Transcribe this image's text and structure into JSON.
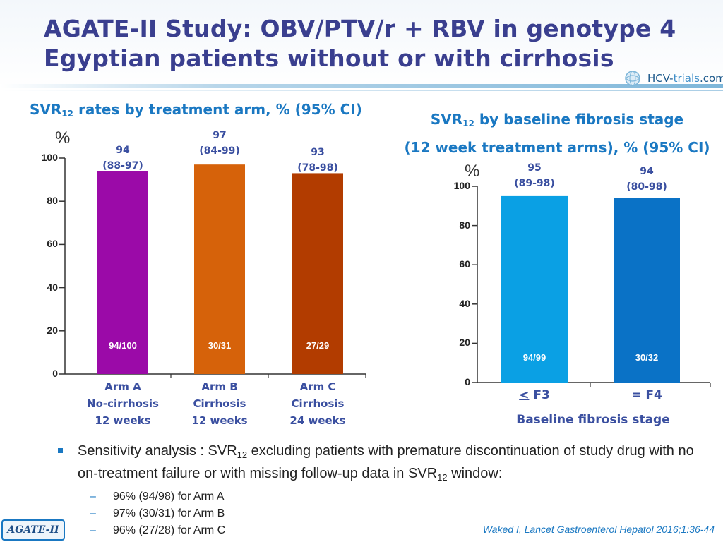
{
  "header": {
    "title_line1": "AGATE-II Study: OBV/PTV/r + RBV in genotype 4",
    "title_line2": "Egyptian patients without or with cirrhosis",
    "logo_part1": "HCV-",
    "logo_part2": "trials",
    "logo_part3": ".com"
  },
  "left_section": {
    "title_pre": "SVR",
    "title_sub": "12",
    "title_post": " rates by treatment arm, % (95% CI)"
  },
  "right_section": {
    "title_line1_pre": "SVR",
    "title_line1_sub": "12",
    "title_line1_post": " by baseline fibrosis stage",
    "title_line2": "(12 week treatment arms), % (95% CI)",
    "xlabel": "Baseline fibrosis stage"
  },
  "colors": {
    "title": "#3a3f8f",
    "accent": "#1a78c2",
    "arm_a": "#9b0aa8",
    "arm_b": "#d6620a",
    "arm_c": "#b23c00",
    "f3": "#0aa0e4",
    "f4": "#0a72c6"
  },
  "chart_data": [
    {
      "type": "bar",
      "title": "SVR12 rates by treatment arm, % (95% CI)",
      "ylabel": "%",
      "ylim": [
        0,
        100
      ],
      "yticks": [
        "0",
        "20",
        "40",
        "60",
        "80",
        "100"
      ],
      "categories": [
        [
          "Arm A",
          "No-cirrhosis",
          "12 weeks"
        ],
        [
          "Arm B",
          "Cirrhosis",
          "12 weeks"
        ],
        [
          "Arm C",
          "Cirrhosis",
          "24 weeks"
        ]
      ],
      "values": [
        94,
        97,
        93
      ],
      "value_labels": [
        "94",
        "97",
        "93"
      ],
      "ci_labels": [
        "(88-97)",
        "(84-99)",
        "(78-98)"
      ],
      "count_labels": [
        "94/100",
        "30/31",
        "27/29"
      ]
    },
    {
      "type": "bar",
      "title": "SVR12 by baseline fibrosis stage (12 week treatment arms), % (95% CI)",
      "ylabel": "%",
      "xlabel": "Baseline fibrosis stage",
      "ylim": [
        0,
        100
      ],
      "yticks": [
        "0",
        "20",
        "40",
        "60",
        "80",
        "100"
      ],
      "categories": [
        "F3",
        "= F4"
      ],
      "category_prefix_underlined": "<",
      "values": [
        95,
        94
      ],
      "value_labels": [
        "95",
        "94"
      ],
      "ci_labels": [
        "(89-98)",
        "(80-98)"
      ],
      "count_labels": [
        "94/99",
        "30/32"
      ]
    }
  ],
  "bullets": {
    "main_pre": "Sensitivity analysis : SVR",
    "main_sub1": "12",
    "main_mid": " excluding patients with premature discontinuation of study drug with no on-treatment failure or with missing follow-up data in SVR",
    "main_sub2": "12",
    "main_post": " window:",
    "dash": "–",
    "sub_items": [
      "96% (94/98) for Arm A",
      "97% (30/31) for Arm B",
      "96% (27/28) for Arm C"
    ]
  },
  "footer": {
    "tag": "AGATE-II",
    "reference": "Waked I, Lancet Gastroenterol Hepatol 2016;1:36-44"
  }
}
